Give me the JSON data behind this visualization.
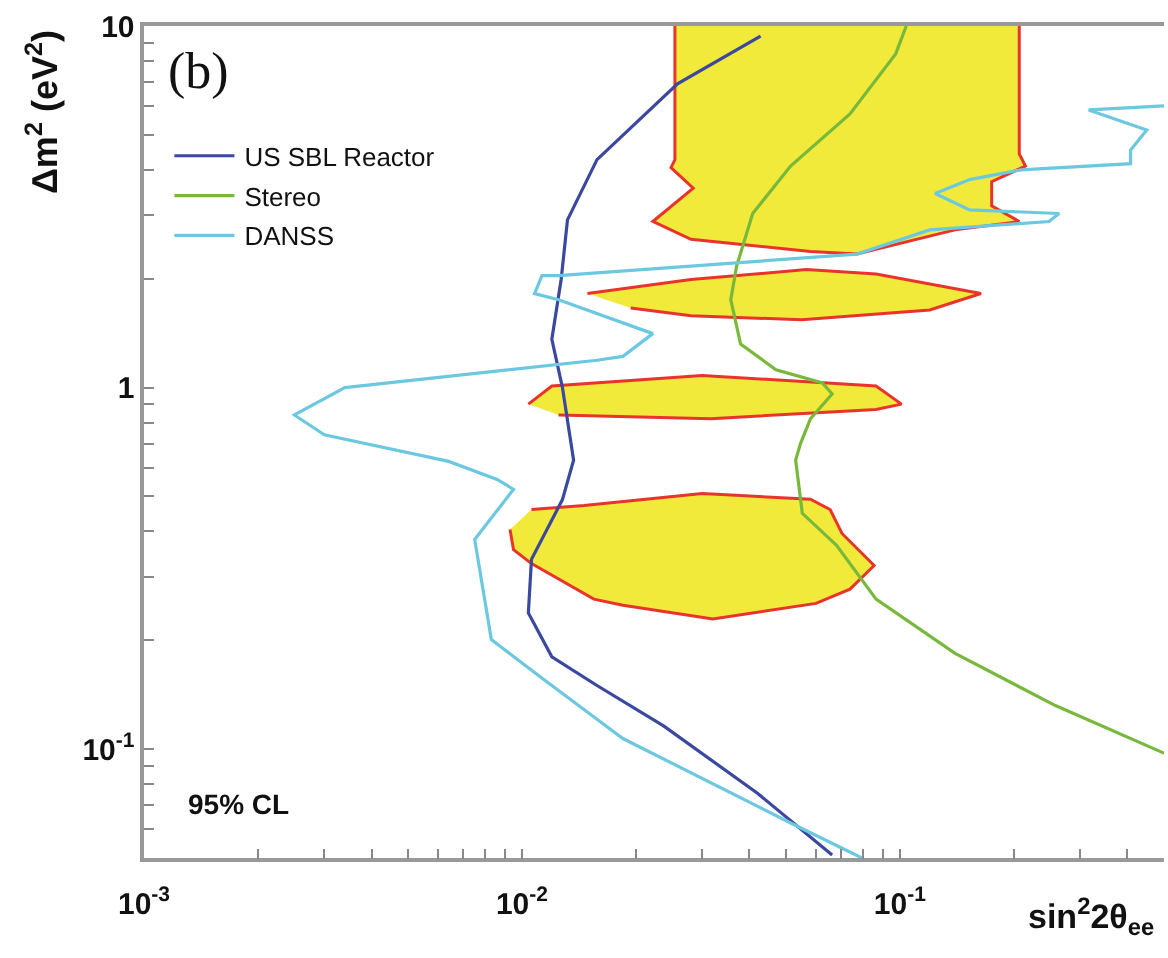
{
  "chart_data": {
    "type": "line",
    "xlabel": "sin$^{2}$2θ$_{ee}$",
    "ylabel": "Δm$^{2}$ (eV$^{2}$)",
    "annotations": [
      "(b)",
      "95% CL"
    ],
    "log": "xy",
    "legend": "top left",
    "xlim": [
      0.001,
      0.5
    ],
    "ylim": [
      0.05,
      10
    ],
    "xticks": [
      {
        "value": 0.001,
        "label": "10$^{-3}$"
      },
      {
        "value": 0.002,
        "label": null
      },
      {
        "value": 0.003,
        "label": null
      },
      {
        "value": 0.004,
        "label": null
      },
      {
        "value": 0.005,
        "label": null
      },
      {
        "value": 0.006,
        "label": null
      },
      {
        "value": 0.007,
        "label": null
      },
      {
        "value": 0.008,
        "label": null
      },
      {
        "value": 0.009,
        "label": null
      },
      {
        "value": 0.01,
        "label": "10$^{-2}$"
      },
      {
        "value": 0.02,
        "label": null
      },
      {
        "value": 0.03,
        "label": null
      },
      {
        "value": 0.04,
        "label": null
      },
      {
        "value": 0.05,
        "label": null
      },
      {
        "value": 0.06,
        "label": null
      },
      {
        "value": 0.07,
        "label": null
      },
      {
        "value": 0.08,
        "label": null
      },
      {
        "value": 0.09,
        "label": null
      },
      {
        "value": 0.1,
        "label": "10$^{-1}$"
      },
      {
        "value": 0.2,
        "label": null
      },
      {
        "value": 0.3,
        "label": null
      },
      {
        "value": 0.4,
        "label": null
      }
    ],
    "yticks": [
      {
        "value": 0.06,
        "label": null
      },
      {
        "value": 0.07,
        "label": null
      },
      {
        "value": 0.08,
        "label": null
      },
      {
        "value": 0.09,
        "label": null
      },
      {
        "value": 0.1,
        "label": "10$^{-1}$"
      },
      {
        "value": 0.2,
        "label": null
      },
      {
        "value": 0.3,
        "label": null
      },
      {
        "value": 0.4,
        "label": null
      },
      {
        "value": 0.5,
        "label": null
      },
      {
        "value": 0.6,
        "label": null
      },
      {
        "value": 0.7,
        "label": null
      },
      {
        "value": 0.8,
        "label": null
      },
      {
        "value": 0.9,
        "label": null
      },
      {
        "value": 1,
        "label": "1"
      },
      {
        "value": 2,
        "label": null
      },
      {
        "value": 3,
        "label": null
      },
      {
        "value": 4,
        "label": null
      },
      {
        "value": 5,
        "label": null
      },
      {
        "value": 6,
        "label": null
      },
      {
        "value": 7,
        "label": null
      },
      {
        "value": 8,
        "label": null
      },
      {
        "value": 9,
        "label": null
      },
      {
        "value": 10,
        "label": "10"
      }
    ],
    "series": [
      {
        "type": "area",
        "color": "#f2ea3a",
        "x": [
          0.0254,
          0.0254,
          0.0248,
          0.0284,
          0.0222,
          0.028,
          0.058,
          0.077,
          0.14,
          0.207,
          0.175,
          0.175,
          0.215,
          0.207,
          0.207
        ],
        "values": [
          10,
          4.27,
          4.06,
          3.56,
          2.88,
          2.57,
          2.38,
          2.34,
          2.73,
          2.88,
          3.18,
          3.71,
          4.1,
          4.43,
          10
        ]
      },
      {
        "type": "area",
        "color": "#f2ea3a",
        "x": [
          0.0149,
          0.028,
          0.0566,
          0.0865,
          0.164,
          0.12,
          0.055,
          0.028,
          0.0194
        ],
        "values": [
          1.82,
          1.99,
          2.12,
          2.06,
          1.82,
          1.64,
          1.54,
          1.58,
          1.66
        ]
      },
      {
        "type": "area",
        "color": "#f2ea3a",
        "x": [
          0.0104,
          0.012,
          0.03,
          0.0865,
          0.101,
          0.0865,
          0.0316,
          0.0125
        ],
        "values": [
          0.9,
          1.01,
          1.08,
          1.01,
          0.9,
          0.87,
          0.82,
          0.84
        ]
      },
      {
        "type": "area",
        "color": "#f2ea3a",
        "x": [
          0.0106,
          0.0146,
          0.03,
          0.058,
          0.0654,
          0.0703,
          0.0855,
          0.0738,
          0.06,
          0.032,
          0.0185,
          0.0155,
          0.0106,
          0.0095,
          0.0093
        ],
        "values": [
          0.46,
          0.472,
          0.509,
          0.491,
          0.46,
          0.395,
          0.322,
          0.277,
          0.253,
          0.229,
          0.25,
          0.26,
          0.326,
          0.356,
          0.405
        ]
      },
      {
        "name": "US SBL Reactor",
        "color": "#3a48a0",
        "x": [
          0.0428,
          0.0258,
          0.0158,
          0.0132,
          0.0127,
          0.012,
          0.0128,
          0.0137,
          0.0128,
          0.0106,
          0.0104,
          0.012,
          0.0158,
          0.0237,
          0.042,
          0.0662
        ],
        "values": [
          9.38,
          6.92,
          4.27,
          2.91,
          1.99,
          1.36,
          1.0,
          0.63,
          0.49,
          0.335,
          0.238,
          0.18,
          0.15,
          0.116,
          0.0755,
          0.051
        ]
      },
      {
        "name": "Stereo",
        "color": "#78b83c",
        "x": [
          0.104,
          0.0975,
          0.0738,
          0.0514,
          0.0408,
          0.037,
          0.0357,
          0.0379,
          0.047,
          0.0624,
          0.0662,
          0.058,
          0.0546,
          0.053,
          0.0552,
          0.068,
          0.0865,
          0.14,
          0.258,
          0.5
        ],
        "values": [
          10,
          8.37,
          5.71,
          4.1,
          3.03,
          2.17,
          1.75,
          1.32,
          1.12,
          1.03,
          0.96,
          0.82,
          0.7,
          0.63,
          0.449,
          0.366,
          0.26,
          0.184,
          0.132,
          0.0975
        ]
      },
      {
        "name": "DANSS",
        "color": "#6cc8e0",
        "x": [
          0.5,
          0.316,
          0.45,
          0.408,
          0.408,
          0.209,
          0.153,
          0.124,
          0.153,
          0.264,
          0.248,
          0.12,
          0.077,
          0.0125,
          0.0113,
          0.0108,
          0.0125,
          0.0222,
          0.0185,
          0.0158,
          0.0034,
          0.0025,
          0.003,
          0.0064,
          0.0086,
          0.0095,
          0.0075,
          0.0083,
          0.0114,
          0.0158,
          0.0185,
          0.0514,
          0.0794
        ],
        "values": [
          6.01,
          5.86,
          5.16,
          4.54,
          4.16,
          4.0,
          3.76,
          3.44,
          3.1,
          3.03,
          2.88,
          2.73,
          2.34,
          2.04,
          2.04,
          1.82,
          1.75,
          1.41,
          1.22,
          1.19,
          1.0,
          0.84,
          0.74,
          0.625,
          0.557,
          0.523,
          0.38,
          0.201,
          0.156,
          0.121,
          0.107,
          0.0625,
          0.05
        ]
      }
    ]
  }
}
